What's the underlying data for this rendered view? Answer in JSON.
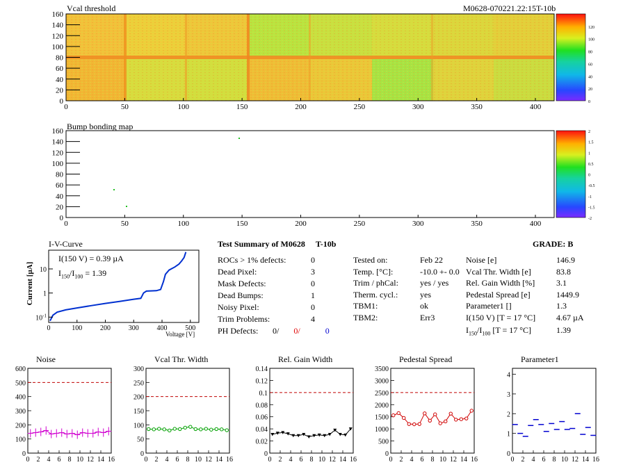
{
  "vcal": {
    "title": "Vcal threshold",
    "module_id": "M0628-070221.22:15T-10b",
    "x_ticks": [
      "0",
      "50",
      "100",
      "150",
      "200",
      "250",
      "300",
      "350",
      "400"
    ],
    "y_ticks": [
      "0",
      "20",
      "40",
      "60",
      "80",
      "100",
      "120",
      "140",
      "160"
    ],
    "scale_ticks": [
      "120",
      "100",
      "80",
      "60",
      "40",
      "20",
      "0"
    ]
  },
  "bump": {
    "title": "Bump bonding map",
    "x_ticks": [
      "0",
      "50",
      "100",
      "150",
      "200",
      "250",
      "300",
      "350",
      "400"
    ],
    "y_ticks": [
      "0",
      "20",
      "40",
      "60",
      "80",
      "100",
      "120",
      "140",
      "160"
    ],
    "scale_ticks": [
      "2",
      "1.5",
      "1",
      "0.5",
      "0",
      "-0.5",
      "-1",
      "-1.5",
      "-2"
    ]
  },
  "iv": {
    "title": "I-V-Curve",
    "ylabel": "Current [µA]",
    "xlabel": "Voltage [V]",
    "x_ticks": [
      "0",
      "100",
      "200",
      "300",
      "400",
      "500"
    ],
    "y_ticks": [
      "10",
      "1",
      "10^-1"
    ],
    "ann1": "I(150 V) = 0.39 µA",
    "ann2_a": "I",
    "ann2_sub1": "150",
    "ann2_b": "/I",
    "ann2_sub2": "100",
    "ann2_c": " =  1.39"
  },
  "summary": {
    "title_a": "Test Summary of M0628",
    "title_b": "T-10b",
    "grade": "GRADE:  B",
    "left": [
      {
        "label": "ROCs > 1% defects:",
        "value": "0"
      },
      {
        "label": "Dead Pixel:",
        "value": "3"
      },
      {
        "label": "Mask Defects:",
        "value": "0"
      },
      {
        "label": "Dead Bumps:",
        "value": "1"
      },
      {
        "label": "Noisy Pixel:",
        "value": "0"
      },
      {
        "label": "Trim Problems:",
        "value": "4"
      }
    ],
    "ph_label": "PH Defects:",
    "ph_v1": "0/",
    "ph_v2": "0/",
    "ph_v3": "0",
    "mid": [
      {
        "label": "Tested on:",
        "value": "Feb 22"
      },
      {
        "label": "Temp. [°C]:",
        "value": "-10.0 +- 0.0"
      },
      {
        "label": "Trim / phCal:",
        "value": "yes / yes"
      },
      {
        "label": "Therm. cycl.:",
        "value": "yes"
      },
      {
        "label": "TBM1:",
        "value": "ok"
      },
      {
        "label": "TBM2:",
        "value": "Err3"
      }
    ],
    "right": [
      {
        "label": "Noise [e]",
        "value": "146.9"
      },
      {
        "label": "Vcal Thr. Width [e]",
        "value": "83.8"
      },
      {
        "label": "Rel. Gain Width [%]",
        "value": "3.1"
      },
      {
        "label": "Pedestal Spread [e]",
        "value": "1449.9"
      },
      {
        "label": "Parameter1 []",
        "value": "1.3"
      },
      {
        "label": "I(150 V) [T = 17 °C]",
        "value": "4.67 µA"
      }
    ],
    "ratio_a": "I",
    "ratio_sub1": "150",
    "ratio_b": "/I",
    "ratio_sub2": "100",
    "ratio_c": "  [T = 17 °C]",
    "ratio_value": "1.39"
  },
  "chart_data": [
    {
      "type": "scatter",
      "title": "Noise",
      "x": [
        0,
        1,
        2,
        3,
        4,
        5,
        6,
        7,
        8,
        9,
        10,
        11,
        12,
        13,
        14,
        15
      ],
      "y": [
        140,
        145,
        150,
        160,
        135,
        140,
        145,
        135,
        140,
        130,
        145,
        140,
        140,
        150,
        145,
        155
      ],
      "ylim": [
        0,
        600
      ],
      "xlim": [
        0,
        16
      ],
      "y_ticks": [
        "0",
        "100",
        "200",
        "300",
        "400",
        "500",
        "600"
      ],
      "x_ticks": [
        "0",
        "2",
        "4",
        "6",
        "8",
        "10",
        "12",
        "14",
        "16"
      ],
      "limit": 500,
      "color": "#d000d0"
    },
    {
      "type": "scatter",
      "title": "Vcal Thr. Width",
      "x": [
        0,
        1,
        2,
        3,
        4,
        5,
        6,
        7,
        8,
        9,
        10,
        11,
        12,
        13,
        14,
        15
      ],
      "y": [
        85,
        84,
        86,
        84,
        80,
        86,
        85,
        90,
        93,
        85,
        84,
        86,
        83,
        85,
        84,
        81
      ],
      "ylim": [
        0,
        300
      ],
      "xlim": [
        0,
        16
      ],
      "y_ticks": [
        "0",
        "50",
        "100",
        "150",
        "200",
        "250",
        "300"
      ],
      "x_ticks": [
        "0",
        "2",
        "4",
        "6",
        "8",
        "10",
        "12",
        "14",
        "16"
      ],
      "limit": 200,
      "color": "#00a000"
    },
    {
      "type": "scatter",
      "title": "Rel. Gain Width",
      "x": [
        0,
        1,
        2,
        3,
        4,
        5,
        6,
        7,
        8,
        9,
        10,
        11,
        12,
        13,
        14,
        15
      ],
      "y": [
        0.031,
        0.033,
        0.034,
        0.032,
        0.029,
        0.029,
        0.031,
        0.027,
        0.029,
        0.03,
        0.029,
        0.031,
        0.038,
        0.031,
        0.03,
        0.04
      ],
      "ylim": [
        0,
        0.14
      ],
      "xlim": [
        0,
        16
      ],
      "y_ticks": [
        "0",
        "0.02",
        "0.04",
        "0.06",
        "0.08",
        "0.1",
        "0.12",
        "0.14"
      ],
      "x_ticks": [
        "0",
        "2",
        "4",
        "6",
        "8",
        "10",
        "12",
        "14",
        "16"
      ],
      "limit": 0.1,
      "color": "#000000"
    },
    {
      "type": "scatter",
      "title": "Pedestal Spread",
      "x": [
        0,
        1,
        2,
        3,
        4,
        5,
        6,
        7,
        8,
        9,
        10,
        11,
        12,
        13,
        14,
        15
      ],
      "y": [
        1560,
        1650,
        1450,
        1200,
        1190,
        1200,
        1640,
        1340,
        1600,
        1230,
        1310,
        1630,
        1380,
        1400,
        1430,
        1750
      ],
      "ylim": [
        0,
        3500
      ],
      "xlim": [
        0,
        16
      ],
      "y_ticks": [
        "0",
        "500",
        "1000",
        "1500",
        "2000",
        "2500",
        "3000",
        "3500"
      ],
      "x_ticks": [
        "0",
        "2",
        "4",
        "6",
        "8",
        "10",
        "12",
        "14",
        "16"
      ],
      "limit": 2500,
      "color": "#d00000"
    },
    {
      "type": "scatter",
      "title": "Parameter1",
      "x": [
        0,
        1,
        2,
        3,
        4,
        5,
        6,
        7,
        8,
        9,
        10,
        11,
        12,
        13,
        14,
        15
      ],
      "y": [
        1.45,
        1.0,
        0.85,
        1.4,
        1.7,
        1.45,
        1.1,
        1.5,
        1.2,
        1.6,
        1.2,
        1.25,
        2.0,
        0.95,
        1.3,
        0.9
      ],
      "ylim": [
        0,
        4.3
      ],
      "xlim": [
        0,
        16
      ],
      "y_ticks": [
        "0",
        "1",
        "2",
        "3",
        "4"
      ],
      "x_ticks": [
        "0",
        "2",
        "4",
        "6",
        "8",
        "10",
        "12",
        "14",
        "16"
      ],
      "color": "#0000d0"
    }
  ]
}
